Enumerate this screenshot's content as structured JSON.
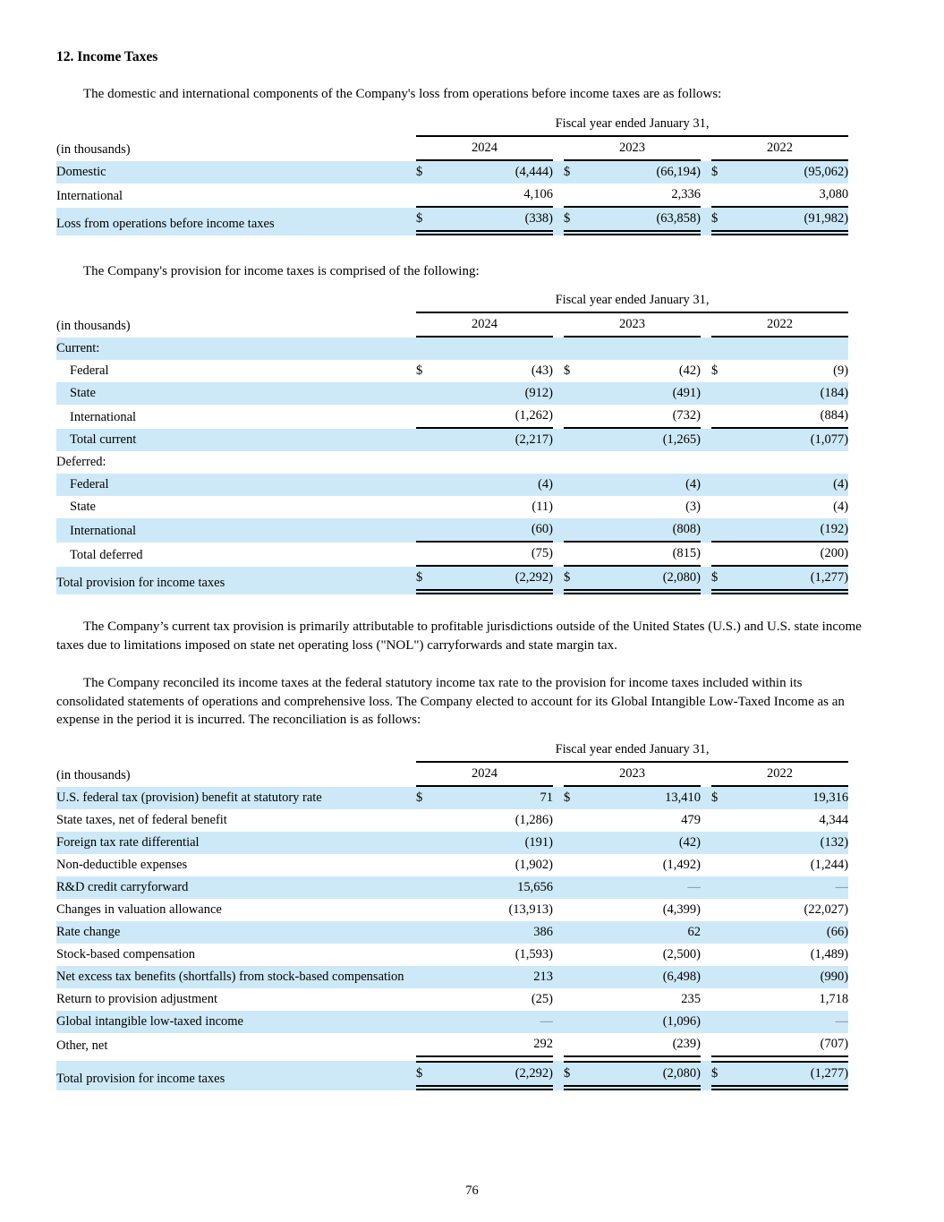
{
  "colors": {
    "row_shade": "#cde9f8",
    "rule": "#000000",
    "dash_gray": "#6f8290"
  },
  "section": {
    "heading": "12. Income Taxes"
  },
  "paragraphs": {
    "p1": "The domestic and international components of the Company's loss from operations before income taxes are as follows:",
    "p2": "The Company's provision for income taxes is comprised of the following:",
    "p3": "The Company’s current tax provision is primarily attributable to profitable jurisdictions outside of the United States (U.S.) and U.S. state income taxes due to limitations imposed on state net operating loss (\"NOL\") carryforwards and state margin tax.",
    "p4": "The Company reconciled its income taxes at the federal statutory income tax rate to the provision for income taxes included within its consolidated statements of operations and comprehensive loss. The Company elected to account for its Global Intangible Low-Taxed Income as an expense in the period it is incurred. The reconciliation is as follows:"
  },
  "page": {
    "number": "76"
  },
  "tables": [
    {
      "name": "loss-components-table",
      "period_header": "Fiscal year ended January 31,",
      "row_header": "(in thousands)",
      "years": [
        "2024",
        "2023",
        "2022"
      ],
      "rows": [
        {
          "label": "Domestic",
          "dollar": true,
          "values": [
            "(4,444)",
            "(66,194)",
            "(95,062)"
          ],
          "shaded": true
        },
        {
          "label": "International",
          "values": [
            "4,106",
            "2,336",
            "3,080"
          ],
          "rule": "single"
        },
        {
          "label": "Loss from operations before income taxes",
          "dollar": true,
          "values": [
            "(338)",
            "(63,858)",
            "(91,982)"
          ],
          "shaded": true,
          "rule": "double"
        }
      ]
    },
    {
      "name": "provision-table",
      "period_header": "Fiscal year ended January 31,",
      "row_header": "(in thousands)",
      "years": [
        "2024",
        "2023",
        "2022"
      ],
      "rows": [
        {
          "label": "Current:",
          "values": [
            "",
            "",
            ""
          ],
          "shaded": true
        },
        {
          "label": "Federal",
          "indent": 1,
          "dollar": true,
          "values": [
            "(43)",
            "(42)",
            "(9)"
          ]
        },
        {
          "label": "State",
          "indent": 1,
          "values": [
            "(912)",
            "(491)",
            "(184)"
          ],
          "shaded": true
        },
        {
          "label": "International",
          "indent": 1,
          "values": [
            "(1,262)",
            "(732)",
            "(884)"
          ],
          "rule": "single"
        },
        {
          "label": "Total current",
          "indent": 1,
          "values": [
            "(2,217)",
            "(1,265)",
            "(1,077)"
          ],
          "shaded": true
        },
        {
          "label": "Deferred:",
          "values": [
            "",
            "",
            ""
          ]
        },
        {
          "label": "Federal",
          "indent": 1,
          "values": [
            "(4)",
            "(4)",
            "(4)"
          ],
          "shaded": true
        },
        {
          "label": "State",
          "indent": 1,
          "values": [
            "(11)",
            "(3)",
            "(4)"
          ]
        },
        {
          "label": "International",
          "indent": 1,
          "values": [
            "(60)",
            "(808)",
            "(192)"
          ],
          "shaded": true,
          "rule": "single"
        },
        {
          "label": "Total deferred",
          "indent": 1,
          "values": [
            "(75)",
            "(815)",
            "(200)"
          ],
          "rule": "single"
        },
        {
          "label": "Total provision for income taxes",
          "dollar": true,
          "values": [
            "(2,292)",
            "(2,080)",
            "(1,277)"
          ],
          "shaded": true,
          "rule": "double"
        }
      ]
    },
    {
      "name": "rate-reconciliation-table",
      "period_header": "Fiscal year ended January 31,",
      "row_header": "(in thousands)",
      "years": [
        "2024",
        "2023",
        "2022"
      ],
      "rows": [
        {
          "label": "U.S. federal tax (provision) benefit at statutory rate",
          "dollar": true,
          "values": [
            "71",
            "13,410",
            "19,316"
          ],
          "shaded": true
        },
        {
          "label": "State taxes, net of federal benefit",
          "values": [
            "(1,286)",
            "479",
            "4,344"
          ]
        },
        {
          "label": "Foreign tax rate differential",
          "values": [
            "(191)",
            "(42)",
            "(132)"
          ],
          "shaded": true
        },
        {
          "label": "Non-deductible expenses",
          "values": [
            "(1,902)",
            "(1,492)",
            "(1,244)"
          ]
        },
        {
          "label": "R&D credit carryforward",
          "values": [
            "15,656",
            "—",
            "—"
          ],
          "shaded": true
        },
        {
          "label": "Changes in valuation allowance",
          "values": [
            "(13,913)",
            "(4,399)",
            "(22,027)"
          ]
        },
        {
          "label": "Rate change",
          "values": [
            "386",
            "62",
            "(66)"
          ],
          "shaded": true
        },
        {
          "label": "Stock-based compensation",
          "values": [
            "(1,593)",
            "(2,500)",
            "(1,489)"
          ]
        },
        {
          "label": "Net excess tax benefits (shortfalls) from stock-based compensation",
          "values": [
            "213",
            "(6,498)",
            "(990)"
          ],
          "shaded": true
        },
        {
          "label": "Return to provision adjustment",
          "values": [
            "(25)",
            "235",
            "1,718"
          ]
        },
        {
          "label": "Global intangible low-taxed income",
          "values": [
            "—",
            "(1,096)",
            "—"
          ],
          "shaded": true
        },
        {
          "label": "Other, net",
          "values": [
            "292",
            "(239)",
            "(707)"
          ],
          "rule": "single"
        },
        {
          "label": "Total provision for income taxes",
          "dollar": true,
          "values": [
            "(2,292)",
            "(2,080)",
            "(1,277)"
          ],
          "shaded": true,
          "rule": "double",
          "rule_top": true,
          "gap_above": true
        }
      ]
    }
  ]
}
